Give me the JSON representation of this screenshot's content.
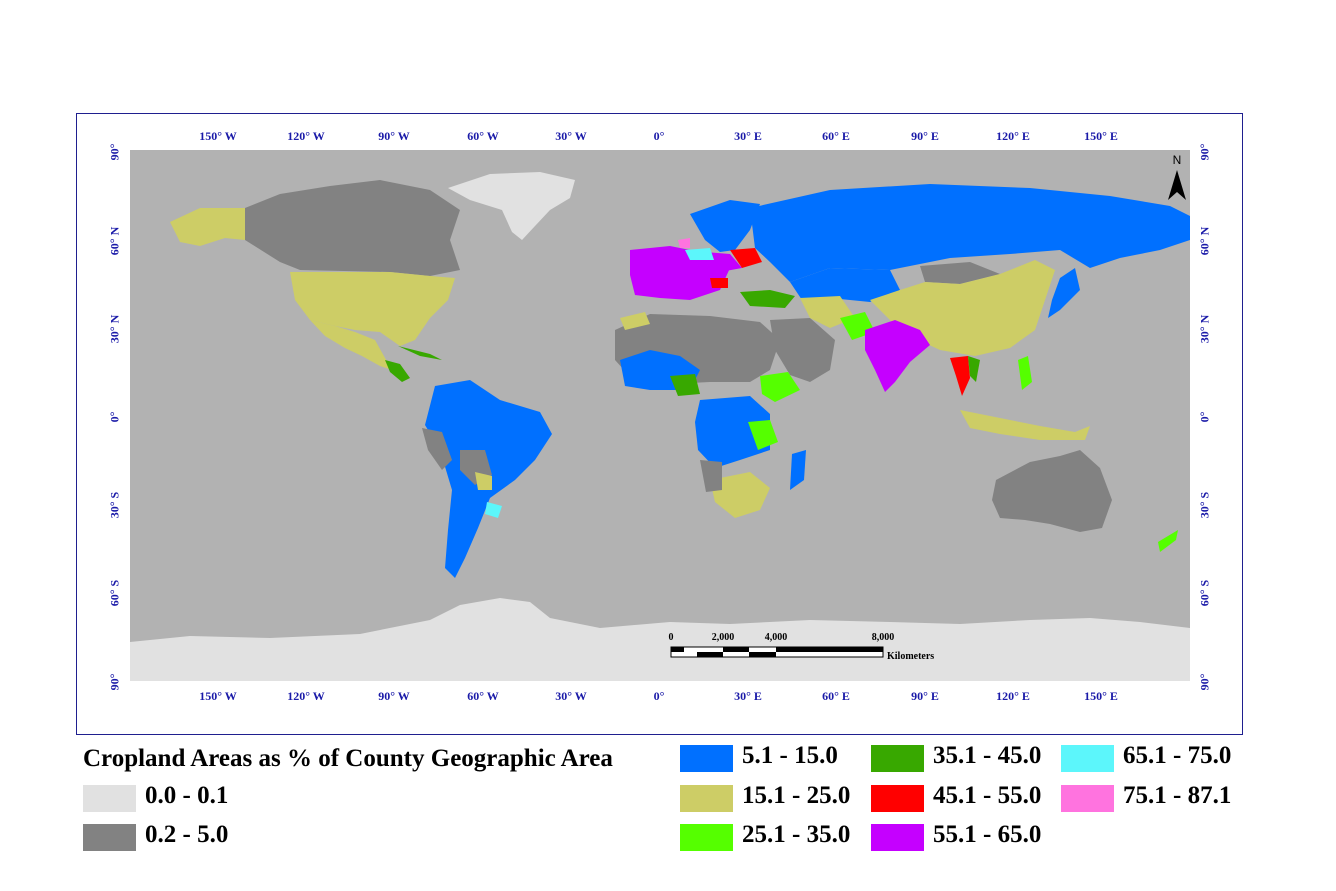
{
  "map": {
    "top_ticks": [
      "150° W",
      "120° W",
      "90° W",
      "60° W",
      "30° W",
      "0°",
      "30° E",
      "60° E",
      "90° E",
      "120° E",
      "150° E"
    ],
    "side_ticks": [
      "90°",
      "60° N",
      "30° N",
      "0°",
      "30° S",
      "60° S",
      "90°"
    ],
    "north_label": "N",
    "scale": {
      "labels": [
        "0",
        "2,000",
        "4,000",
        "8,000"
      ],
      "unit": "Kilometers"
    },
    "colors": {
      "ocean": "#b2b2b2",
      "land_low": "#e1e1e1",
      "land_0_2_5": "#828282",
      "c_5_15": "#0070ff",
      "c_15_25": "#cdcd66",
      "c_25_35": "#55ff00",
      "c_35_45": "#38a800",
      "c_45_55": "#ff0000",
      "c_55_65": "#c500ff",
      "c_65_75": "#5cf6fb",
      "c_75_87": "#ff73df"
    }
  },
  "legend": {
    "title": "Cropland Areas as % of  County Geographic Area",
    "items": [
      {
        "label": "0.0 - 0.1",
        "color": "#e1e1e1"
      },
      {
        "label": "0.2 - 5.0",
        "color": "#828282"
      },
      {
        "label": "5.1 - 15.0",
        "color": "#0070ff"
      },
      {
        "label": "15.1 - 25.0",
        "color": "#cdcd66"
      },
      {
        "label": "25.1 - 35.0",
        "color": "#55ff00"
      },
      {
        "label": "35.1 - 45.0",
        "color": "#38a800"
      },
      {
        "label": "45.1 - 55.0",
        "color": "#ff0000"
      },
      {
        "label": "55.1 - 65.0",
        "color": "#c500ff"
      },
      {
        "label": "65.1 - 75.0",
        "color": "#5cf6fb"
      },
      {
        "label": "75.1 - 87.1",
        "color": "#ff73df"
      }
    ]
  }
}
